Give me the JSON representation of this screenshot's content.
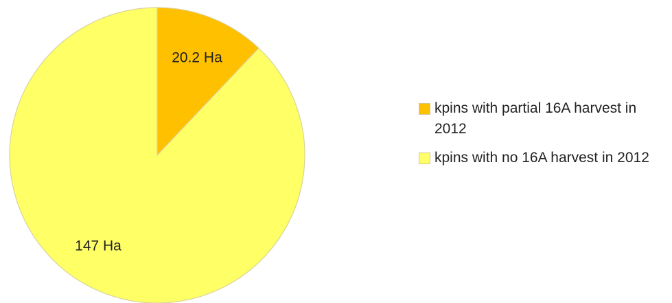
{
  "chart_data": {
    "type": "pie",
    "title": "",
    "slices": [
      {
        "label": "kpins with partial 16A harvest in 2012",
        "value": 20.2,
        "data_label": "20.2 Ha",
        "color": "#FFC000"
      },
      {
        "label": "kpins with no 16A harvest in 2012",
        "value": 147,
        "data_label": "147 Ha",
        "color": "#FFFF66"
      }
    ],
    "unit": "Ha",
    "legend_position": "right",
    "start_angle": "12 o'clock, clockwise",
    "slice_border_color": "#D9D39A"
  }
}
